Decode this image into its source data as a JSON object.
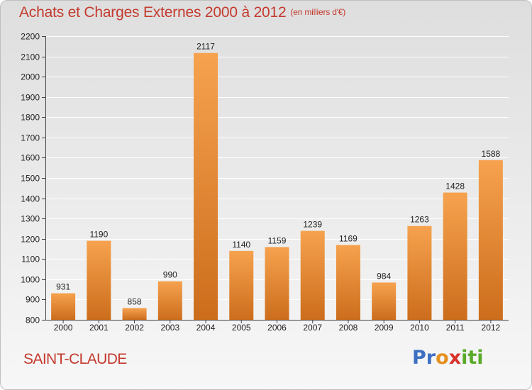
{
  "header": {
    "title": "Achats et Charges Externes 2000 à 2012",
    "unit": "(en milliers d'€)"
  },
  "footer": {
    "commune": "SAINT-CLAUDE",
    "logo_letters": [
      "P",
      "r",
      "o",
      "x",
      "i",
      "t",
      "i"
    ]
  },
  "colors": {
    "bar_top": "#f6a24e",
    "bar_bottom": "#cc6d1c",
    "grid": "#ffffff",
    "axis": "#444444"
  },
  "chart_data": {
    "type": "bar",
    "title": "Achats et Charges Externes 2000 à 2012",
    "subtitle": "(en milliers d'€)",
    "xlabel": "",
    "ylabel": "",
    "categories": [
      "2000",
      "2001",
      "2002",
      "2003",
      "2004",
      "2005",
      "2006",
      "2007",
      "2008",
      "2009",
      "2010",
      "2011",
      "2012"
    ],
    "values": [
      931,
      1190,
      858,
      990,
      2117,
      1140,
      1159,
      1239,
      1169,
      984,
      1263,
      1428,
      1588
    ],
    "ylim": [
      800,
      2200
    ],
    "yticks": [
      800,
      900,
      1000,
      1100,
      1200,
      1300,
      1400,
      1500,
      1600,
      1700,
      1800,
      1900,
      2000,
      2100,
      2200
    ],
    "grid": true,
    "legend": "none"
  }
}
